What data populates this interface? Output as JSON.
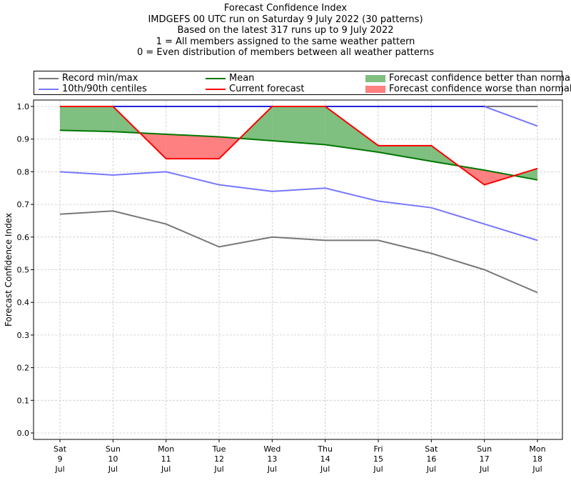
{
  "header": {
    "lines": [
      "Forecast Confidence Index",
      "IMDGEFS 00 UTC run on Saturday 9 July 2022 (30 patterns)",
      "Based on the latest 317 runs up to 9 July 2022",
      "1 = All members assigned to the same weather pattern",
      "0 = Even distribution of members between all weather patterns"
    ]
  },
  "legend": {
    "record": "Record min/max",
    "centiles": "10th/90th centiles",
    "mean": "Mean",
    "current": "Current forecast",
    "better": "Forecast confidence better than normal",
    "worse": "Forecast confidence worse than normal"
  },
  "colors": {
    "record": "#777777",
    "centiles": "#7777ff",
    "centile_top": "#2222dd",
    "mean": "#007700",
    "current": "#ff0000",
    "better": "#7fbf7f",
    "worse": "#ff8080"
  },
  "chart_data": {
    "type": "line",
    "title": "",
    "xlabel": "",
    "ylabel": "Forecast Confidence Index",
    "ylim": [
      0,
      1.0
    ],
    "yticks": [
      "0.0",
      "0.1",
      "0.2",
      "0.3",
      "0.4",
      "0.5",
      "0.6",
      "0.7",
      "0.8",
      "0.9",
      "1.0"
    ],
    "categories": [
      [
        "Sat",
        "9",
        "Jul"
      ],
      [
        "Sun",
        "10",
        "Jul"
      ],
      [
        "Mon",
        "11",
        "Jul"
      ],
      [
        "Tue",
        "12",
        "Jul"
      ],
      [
        "Wed",
        "13",
        "Jul"
      ],
      [
        "Thu",
        "14",
        "Jul"
      ],
      [
        "Fri",
        "15",
        "Jul"
      ],
      [
        "Sat",
        "16",
        "Jul"
      ],
      [
        "Sun",
        "17",
        "Jul"
      ],
      [
        "Mon",
        "18",
        "Jul"
      ]
    ],
    "grid": true,
    "legend_position": "top",
    "series": [
      {
        "name": "Record min/max",
        "key": "record_max",
        "values": [
          1.0,
          1.0,
          1.0,
          1.0,
          1.0,
          1.0,
          1.0,
          1.0,
          1.0,
          1.0
        ]
      },
      {
        "name": "Record min/max",
        "key": "record_min",
        "values": [
          0.67,
          0.68,
          0.64,
          0.57,
          0.6,
          0.59,
          0.59,
          0.55,
          0.5,
          0.43
        ]
      },
      {
        "name": "10th/90th centiles",
        "key": "p90",
        "values": [
          1.0,
          1.0,
          1.0,
          1.0,
          1.0,
          1.0,
          1.0,
          1.0,
          1.0,
          0.94
        ]
      },
      {
        "name": "10th/90th centiles",
        "key": "p10",
        "values": [
          0.8,
          0.79,
          0.8,
          0.76,
          0.74,
          0.75,
          0.71,
          0.69,
          0.64,
          0.59
        ]
      },
      {
        "name": "Mean",
        "key": "mean",
        "values": [
          0.927,
          0.923,
          0.915,
          0.907,
          0.895,
          0.883,
          0.86,
          0.832,
          0.805,
          0.775
        ]
      },
      {
        "name": "Current forecast",
        "key": "current",
        "values": [
          1.0,
          1.0,
          0.84,
          0.84,
          1.0,
          1.0,
          0.88,
          0.88,
          0.76,
          0.81
        ]
      }
    ]
  }
}
